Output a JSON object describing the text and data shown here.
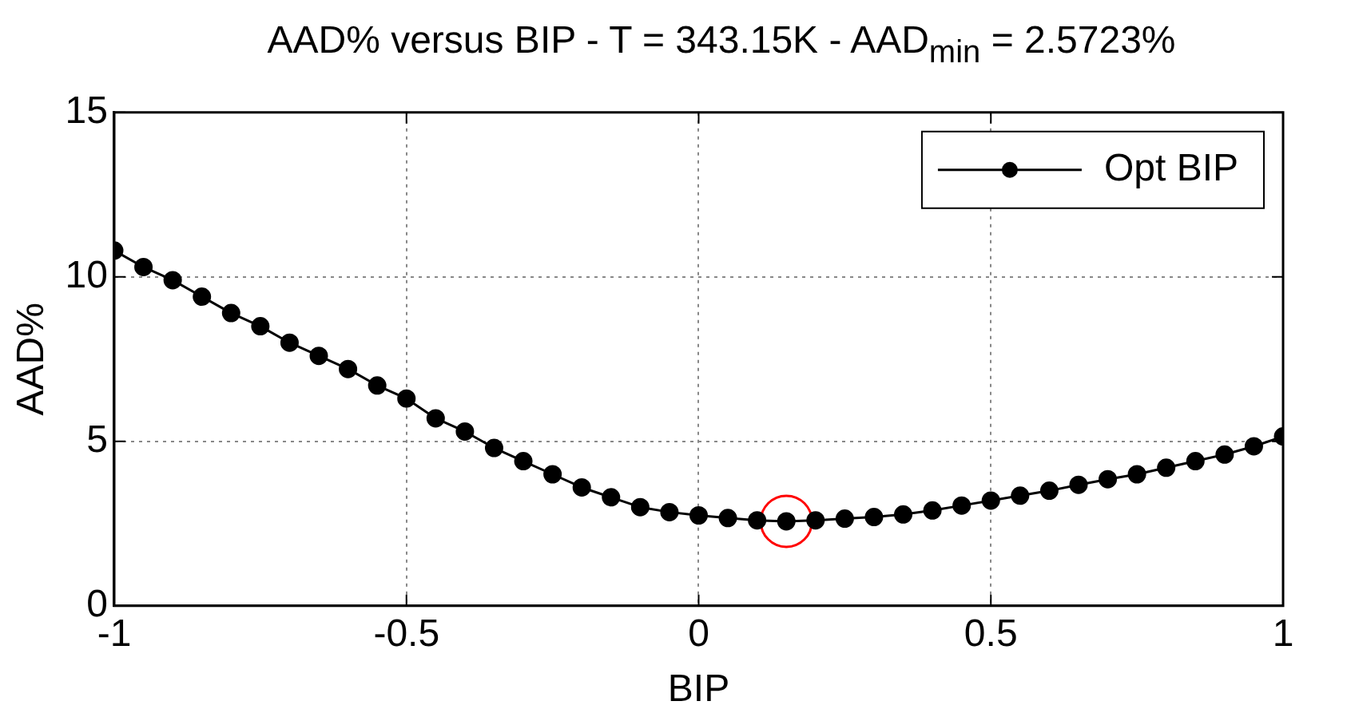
{
  "chart_data": {
    "type": "line",
    "title": "AAD% versus BIP - T = 343.15K - AAD$_{min}$ = 2.5723%",
    "xlabel": "BIP",
    "ylabel": "AAD%",
    "x": [
      -1,
      -0.95,
      -0.9,
      -0.85,
      -0.8,
      -0.75,
      -0.7,
      -0.65,
      -0.6,
      -0.55,
      -0.5,
      -0.45,
      -0.4,
      -0.35,
      -0.3,
      -0.25,
      -0.2,
      -0.15,
      -0.1,
      -0.05,
      0,
      0.05,
      0.1,
      0.15,
      0.2,
      0.25,
      0.3,
      0.35,
      0.4,
      0.45,
      0.5,
      0.55,
      0.6,
      0.65,
      0.7,
      0.75,
      0.8,
      0.85,
      0.9,
      0.95,
      1
    ],
    "series": [
      {
        "name": "Opt BIP",
        "color": "#000000",
        "values": [
          10.8,
          10.3,
          9.9,
          9.4,
          8.9,
          8.5,
          8.0,
          7.6,
          7.2,
          6.7,
          6.3,
          5.7,
          5.3,
          4.8,
          4.4,
          4.0,
          3.6,
          3.3,
          3.0,
          2.85,
          2.75,
          2.67,
          2.6,
          2.57,
          2.6,
          2.65,
          2.7,
          2.78,
          2.9,
          3.05,
          3.2,
          3.35,
          3.5,
          3.68,
          3.85,
          4.0,
          4.2,
          4.4,
          4.6,
          4.85,
          5.15
        ]
      },
      {
        "type": "scatter",
        "color": "#ff0000",
        "x": [
          0.15
        ],
        "values": [
          2.57
        ]
      }
    ],
    "xlim": [
      -1,
      1
    ],
    "xticks": [
      -1,
      -0.5,
      0,
      0.5,
      1
    ],
    "ylim": [
      0,
      15
    ],
    "yticks": [
      0,
      5,
      10,
      15
    ],
    "grid": true,
    "legend": "top right",
    "marker": "circle",
    "line_style": "solid"
  }
}
